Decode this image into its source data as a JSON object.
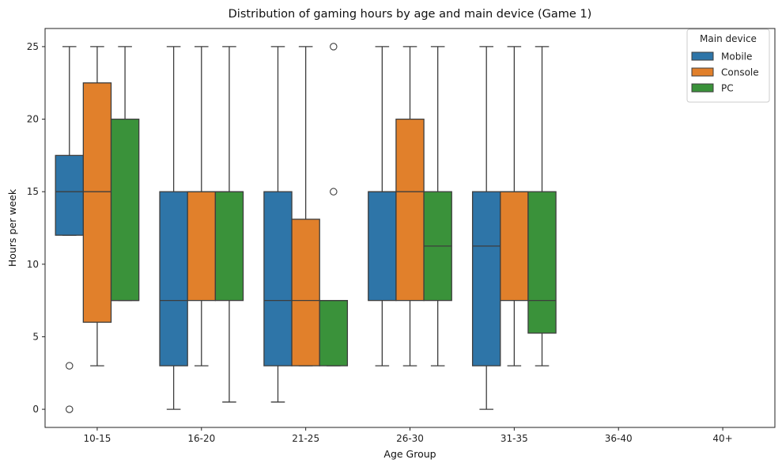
{
  "chart_data": {
    "type": "box",
    "title": "Distribution of gaming hours by age and main device (Game 1)",
    "xlabel": "Age Group",
    "ylabel": "Hours per week",
    "categories": [
      "10-15",
      "16-20",
      "21-25",
      "26-30",
      "31-35",
      "36-40",
      "40+"
    ],
    "yticks": [
      0,
      5,
      10,
      15,
      20,
      25
    ],
    "ylim": [
      -1.25,
      26.25
    ],
    "grid": false,
    "legend": {
      "title": "Main device",
      "placement": "top-right"
    },
    "series": [
      {
        "name": "Mobile",
        "color": "#2e75a8",
        "boxes": [
          {
            "category": "10-15",
            "whisker_low": 12,
            "q1": 12,
            "median": 15,
            "q3": 17.5,
            "whisker_high": 25,
            "outliers": [
              3,
              0
            ]
          },
          {
            "category": "16-20",
            "whisker_low": 0,
            "q1": 3,
            "median": 7.5,
            "q3": 15,
            "whisker_high": 25,
            "outliers": []
          },
          {
            "category": "21-25",
            "whisker_low": 0.5,
            "q1": 3,
            "median": 7.5,
            "q3": 15,
            "whisker_high": 25,
            "outliers": []
          },
          {
            "category": "26-30",
            "whisker_low": 3,
            "q1": 7.5,
            "median": 15,
            "q3": 15,
            "whisker_high": 25,
            "outliers": []
          },
          {
            "category": "31-35",
            "whisker_low": 0,
            "q1": 3,
            "median": 11.25,
            "q3": 15,
            "whisker_high": 25,
            "outliers": []
          }
        ]
      },
      {
        "name": "Console",
        "color": "#e1802b",
        "boxes": [
          {
            "category": "10-15",
            "whisker_low": 3,
            "q1": 6,
            "median": 15,
            "q3": 22.5,
            "whisker_high": 25,
            "outliers": []
          },
          {
            "category": "16-20",
            "whisker_low": 3,
            "q1": 7.5,
            "median": 15,
            "q3": 15,
            "whisker_high": 25,
            "outliers": []
          },
          {
            "category": "21-25",
            "whisker_low": 3,
            "q1": 3,
            "median": 7.5,
            "q3": 13.1,
            "whisker_high": 25,
            "outliers": []
          },
          {
            "category": "26-30",
            "whisker_low": 3,
            "q1": 7.5,
            "median": 15,
            "q3": 20,
            "whisker_high": 25,
            "outliers": []
          },
          {
            "category": "31-35",
            "whisker_low": 3,
            "q1": 7.5,
            "median": 15,
            "q3": 15,
            "whisker_high": 25,
            "outliers": []
          }
        ]
      },
      {
        "name": "PC",
        "color": "#3a923a",
        "boxes": [
          {
            "category": "10-15",
            "whisker_low": 7.5,
            "q1": 7.5,
            "median": 7.5,
            "q3": 20,
            "whisker_high": 25,
            "outliers": []
          },
          {
            "category": "16-20",
            "whisker_low": 0.5,
            "q1": 7.5,
            "median": 15,
            "q3": 15,
            "whisker_high": 25,
            "outliers": []
          },
          {
            "category": "21-25",
            "whisker_low": 3,
            "q1": 3,
            "median": 7.5,
            "q3": 7.5,
            "whisker_high": 7.5,
            "outliers": [
              25,
              15
            ]
          },
          {
            "category": "26-30",
            "whisker_low": 3,
            "q1": 7.5,
            "median": 11.25,
            "q3": 15,
            "whisker_high": 25,
            "outliers": []
          },
          {
            "category": "31-35",
            "whisker_low": 3,
            "q1": 5.25,
            "median": 7.5,
            "q3": 15,
            "whisker_high": 25,
            "outliers": []
          }
        ]
      }
    ]
  }
}
